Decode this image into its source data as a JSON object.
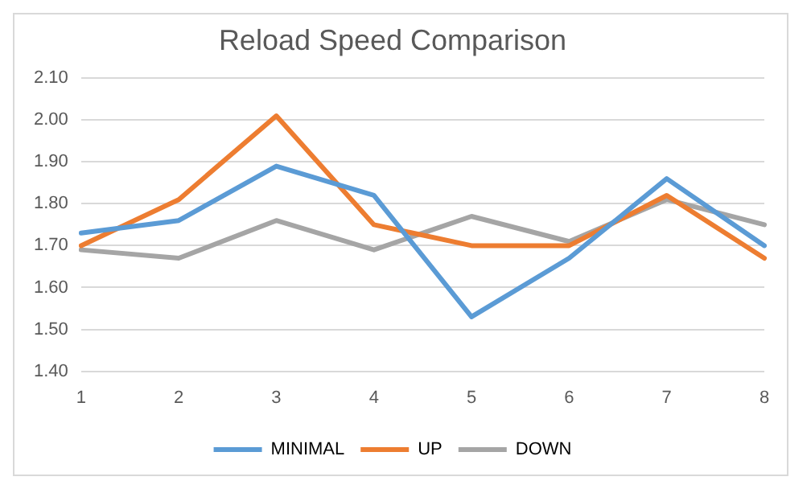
{
  "chart_data": {
    "type": "line",
    "title": "Reload Speed Comparison",
    "categories": [
      "1",
      "2",
      "3",
      "4",
      "5",
      "6",
      "7",
      "8"
    ],
    "series": [
      {
        "name": "MINIMAL",
        "color": "#5b9bd5",
        "values": [
          1.73,
          1.76,
          1.89,
          1.82,
          1.53,
          1.67,
          1.86,
          1.7
        ]
      },
      {
        "name": "UP",
        "color": "#ed7d31",
        "values": [
          1.7,
          1.81,
          2.01,
          1.75,
          1.7,
          1.7,
          1.82,
          1.67
        ]
      },
      {
        "name": "DOWN",
        "color": "#a5a5a5",
        "values": [
          1.69,
          1.67,
          1.76,
          1.69,
          1.77,
          1.71,
          1.81,
          1.75
        ]
      }
    ],
    "ylim": [
      1.4,
      2.1
    ],
    "yticks": [
      {
        "value": 1.4,
        "label": "1.40"
      },
      {
        "value": 1.5,
        "label": "1.50"
      },
      {
        "value": 1.6,
        "label": "1.60"
      },
      {
        "value": 1.7,
        "label": "1.70"
      },
      {
        "value": 1.8,
        "label": "1.80"
      },
      {
        "value": 1.9,
        "label": "1.90"
      },
      {
        "value": 2.0,
        "label": "2.00"
      },
      {
        "value": 2.1,
        "label": "2.10"
      }
    ],
    "grid": "y",
    "legend": "bottom",
    "marker": "none",
    "line_style": "solid"
  }
}
